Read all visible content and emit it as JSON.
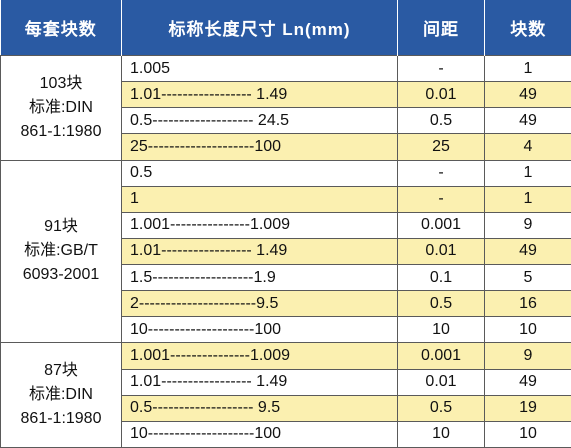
{
  "headers": [
    "每套块数",
    "标称长度尺寸 Ln(mm)",
    "间距",
    "块数"
  ],
  "groups": [
    {
      "count": "103块",
      "standard": "标准:DIN",
      "standard_no": "861-1:1980",
      "rows": [
        {
          "size": "1.005",
          "step": "-",
          "qty": "1",
          "hl": false
        },
        {
          "size": "1.01----------------- 1.49",
          "step": "0.01",
          "qty": "49",
          "hl": true
        },
        {
          "size": "0.5------------------- 24.5",
          "step": "0.5",
          "qty": "49",
          "hl": false
        },
        {
          "size": "25--------------------100",
          "step": "25",
          "qty": "4",
          "hl": true
        }
      ]
    },
    {
      "count": "91块",
      "standard": "标准:GB/T",
      "standard_no": "6093-2001",
      "rows": [
        {
          "size": "0.5",
          "step": "-",
          "qty": "1",
          "hl": false
        },
        {
          "size": "1",
          "step": "-",
          "qty": "1",
          "hl": true
        },
        {
          "size": "1.001---------------1.009",
          "step": "0.001",
          "qty": "9",
          "hl": false
        },
        {
          "size": "1.01----------------- 1.49",
          "step": "0.01",
          "qty": "49",
          "hl": true
        },
        {
          "size": "1.5-------------------1.9",
          "step": "0.1",
          "qty": "5",
          "hl": false
        },
        {
          "size": "2----------------------9.5",
          "step": "0.5",
          "qty": "16",
          "hl": true
        },
        {
          "size": "10--------------------100",
          "step": "10",
          "qty": "10",
          "hl": false
        }
      ]
    },
    {
      "count": "87块",
      "standard": "标准:DIN",
      "standard_no": "861-1:1980",
      "rows": [
        {
          "size": "1.001---------------1.009",
          "step": "0.001",
          "qty": "9",
          "hl": true
        },
        {
          "size": "1.01----------------- 1.49",
          "step": "0.01",
          "qty": "49",
          "hl": false
        },
        {
          "size": "0.5------------------- 9.5",
          "step": "0.5",
          "qty": "19",
          "hl": true
        },
        {
          "size": "10--------------------100",
          "step": "10",
          "qty": "10",
          "hl": false
        }
      ]
    }
  ]
}
